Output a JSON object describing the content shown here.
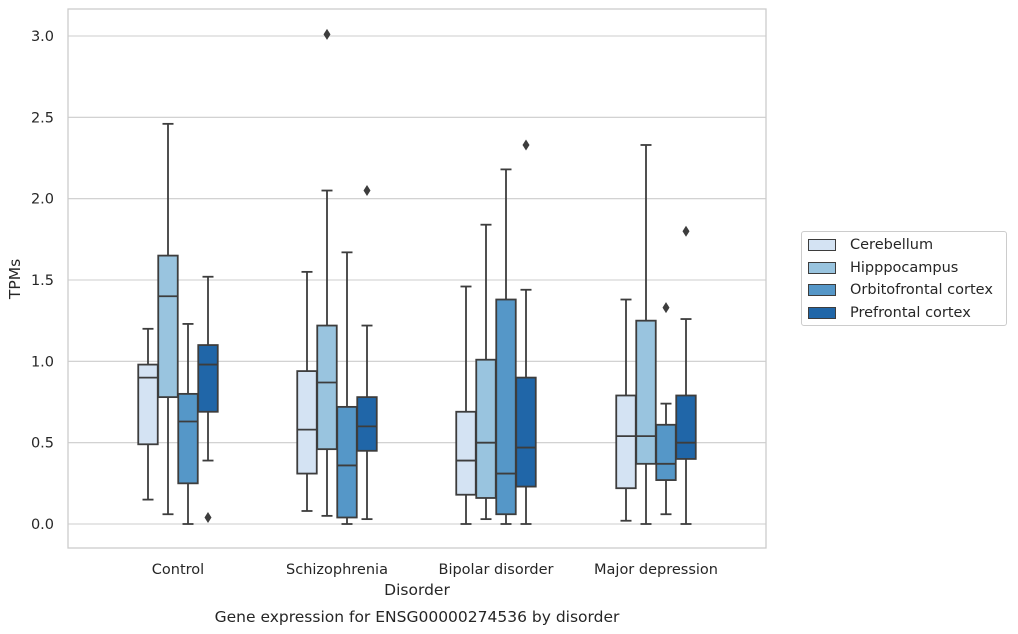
{
  "chart_data": {
    "type": "box",
    "title": "",
    "caption": "Gene expression for ENSG00000274536 by disorder",
    "xlabel": "Disorder",
    "ylabel": "TPMs",
    "ylim": [
      -0.15,
      3.17
    ],
    "yticks": [
      0.0,
      0.5,
      1.0,
      1.5,
      2.0,
      2.5,
      3.0
    ],
    "ytick_labels": [
      "0.0",
      "0.5",
      "1.0",
      "1.5",
      "2.0",
      "2.5",
      "3.0"
    ],
    "grid": "horizontal",
    "legend_position": "outside-right",
    "categories": [
      "Control",
      "Schizophrenia",
      "Bipolar disorder",
      "Major depression"
    ],
    "series": [
      {
        "name": "Cerebellum",
        "color": "#d4e3f3",
        "boxes": [
          {
            "whisker_low": 0.15,
            "q1": 0.49,
            "median": 0.9,
            "q3": 0.98,
            "whisker_high": 1.2,
            "outliers": []
          },
          {
            "whisker_low": 0.08,
            "q1": 0.31,
            "median": 0.58,
            "q3": 0.94,
            "whisker_high": 1.55,
            "outliers": []
          },
          {
            "whisker_low": 0.0,
            "q1": 0.18,
            "median": 0.39,
            "q3": 0.69,
            "whisker_high": 1.46,
            "outliers": []
          },
          {
            "whisker_low": 0.02,
            "q1": 0.22,
            "median": 0.54,
            "q3": 0.79,
            "whisker_high": 1.38,
            "outliers": []
          }
        ]
      },
      {
        "name": "Hipppocampus",
        "color": "#99c4df",
        "boxes": [
          {
            "whisker_low": 0.06,
            "q1": 0.78,
            "median": 1.4,
            "q3": 1.65,
            "whisker_high": 2.46,
            "outliers": []
          },
          {
            "whisker_low": 0.05,
            "q1": 0.46,
            "median": 0.87,
            "q3": 1.22,
            "whisker_high": 2.05,
            "outliers": [
              3.01
            ]
          },
          {
            "whisker_low": 0.03,
            "q1": 0.16,
            "median": 0.5,
            "q3": 1.01,
            "whisker_high": 1.84,
            "outliers": []
          },
          {
            "whisker_low": 0.0,
            "q1": 0.37,
            "median": 0.54,
            "q3": 1.25,
            "whisker_high": 2.33,
            "outliers": []
          }
        ]
      },
      {
        "name": "Orbitofrontal cortex",
        "color": "#5597c8",
        "boxes": [
          {
            "whisker_low": 0.0,
            "q1": 0.25,
            "median": 0.63,
            "q3": 0.8,
            "whisker_high": 1.23,
            "outliers": []
          },
          {
            "whisker_low": 0.0,
            "q1": 0.04,
            "median": 0.36,
            "q3": 0.72,
            "whisker_high": 1.67,
            "outliers": []
          },
          {
            "whisker_low": 0.0,
            "q1": 0.06,
            "median": 0.31,
            "q3": 1.38,
            "whisker_high": 2.18,
            "outliers": []
          },
          {
            "whisker_low": 0.06,
            "q1": 0.27,
            "median": 0.37,
            "q3": 0.61,
            "whisker_high": 0.74,
            "outliers": [
              1.33
            ]
          }
        ]
      },
      {
        "name": "Prefrontal cortex",
        "color": "#2066a8",
        "boxes": [
          {
            "whisker_low": 0.39,
            "q1": 0.69,
            "median": 0.98,
            "q3": 1.1,
            "whisker_high": 1.52,
            "outliers": [
              0.04
            ]
          },
          {
            "whisker_low": 0.03,
            "q1": 0.45,
            "median": 0.6,
            "q3": 0.78,
            "whisker_high": 1.22,
            "outliers": [
              2.05
            ]
          },
          {
            "whisker_low": 0.0,
            "q1": 0.23,
            "median": 0.47,
            "q3": 0.9,
            "whisker_high": 1.44,
            "outliers": [
              2.33
            ]
          },
          {
            "whisker_low": 0.0,
            "q1": 0.4,
            "median": 0.5,
            "q3": 0.79,
            "whisker_high": 1.26,
            "outliers": [
              1.8
            ]
          }
        ]
      }
    ]
  },
  "colors": {
    "box_edge": "#3d3d3d",
    "grid": "#cccccc",
    "frame": "#cccccc",
    "text": "#262626"
  }
}
